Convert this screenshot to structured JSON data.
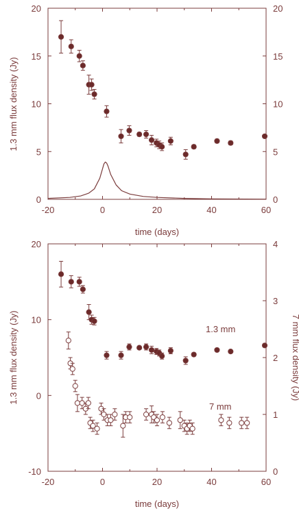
{
  "chart_data": [
    {
      "type": "scatter",
      "xlabel": "time (days)",
      "ylabel": "1.3 mm flux density (Jy)",
      "xlim": [
        -20,
        60
      ],
      "ylim": [
        0,
        20
      ],
      "y2lim": [
        0,
        20
      ],
      "xticks": [
        "-20",
        "0",
        "20",
        "40",
        "60"
      ],
      "yticks": [
        "0",
        "5",
        "10",
        "15",
        "20"
      ],
      "y2ticks": [
        "0",
        "5",
        "10",
        "15",
        "20"
      ],
      "series": [
        {
          "marker": "filled-circle",
          "points": [
            {
              "x": -15.2,
              "y": 17.0,
              "err": 1.7
            },
            {
              "x": -11.5,
              "y": 16.0,
              "err": 0.7
            },
            {
              "x": -8.5,
              "y": 15.0,
              "err": 0.6
            },
            {
              "x": -7.2,
              "y": 14.0,
              "err": 0.5
            },
            {
              "x": -5.0,
              "y": 12.0,
              "err": 1.0
            },
            {
              "x": -4.0,
              "y": 12.0,
              "err": 0.6
            },
            {
              "x": -3.0,
              "y": 11.0,
              "err": 0.5
            },
            {
              "x": 1.5,
              "y": 9.2,
              "err": 0.6
            },
            {
              "x": 6.8,
              "y": 6.6,
              "err": 0.7
            },
            {
              "x": 9.8,
              "y": 7.2,
              "err": 0.5
            },
            {
              "x": 13.5,
              "y": 6.8,
              "err": 0.2
            },
            {
              "x": 16.0,
              "y": 6.8,
              "err": 0.4
            },
            {
              "x": 18.0,
              "y": 6.2,
              "err": 0.5
            },
            {
              "x": 19.8,
              "y": 5.9,
              "err": 0.4
            },
            {
              "x": 20.8,
              "y": 5.7,
              "err": 0.4
            },
            {
              "x": 21.8,
              "y": 5.5,
              "err": 0.4
            },
            {
              "x": 25.0,
              "y": 6.1,
              "err": 0.4
            },
            {
              "x": 30.5,
              "y": 4.7,
              "err": 0.5
            },
            {
              "x": 33.5,
              "y": 5.5,
              "err": 0.2
            },
            {
              "x": 42.0,
              "y": 6.1,
              "err": 0.2
            },
            {
              "x": 47.0,
              "y": 5.9,
              "err": 0.2
            },
            {
              "x": 59.5,
              "y": 6.6,
              "err": 0.1
            }
          ]
        },
        {
          "marker": "line",
          "x": [
            -20,
            -12,
            -8,
            -5,
            -3,
            -1,
            0,
            0.5,
            1,
            1.5,
            2,
            3,
            5,
            7,
            10,
            15,
            20,
            30,
            40,
            60
          ],
          "y": [
            0.1,
            0.2,
            0.35,
            0.65,
            1.1,
            2.2,
            3.2,
            3.7,
            3.9,
            3.8,
            3.5,
            2.6,
            1.5,
            0.9,
            0.55,
            0.3,
            0.2,
            0.1,
            0.05,
            0.02
          ]
        }
      ]
    },
    {
      "type": "scatter",
      "xlabel": "time (days)",
      "ylabel": "1.3 mm flux density (Jy)",
      "y2label": "7 mm flux density (Jy)",
      "xlim": [
        -20,
        60
      ],
      "ylim": [
        -10,
        20
      ],
      "y2lim": [
        0,
        4
      ],
      "xticks": [
        "-20",
        "0",
        "20",
        "40",
        "60"
      ],
      "yticks": [
        "-10",
        "0",
        "10",
        "20"
      ],
      "y2ticks": [
        "0",
        "1",
        "2",
        "3",
        "4"
      ],
      "annotations": [
        "1.3  mm",
        "7 mm"
      ],
      "series": [
        {
          "marker": "filled-circle",
          "axis": "left",
          "points": [
            {
              "x": -15.2,
              "y": 16.0,
              "err": 1.7
            },
            {
              "x": -11.5,
              "y": 15.0,
              "err": 0.8
            },
            {
              "x": -8.5,
              "y": 15.0,
              "err": 0.6
            },
            {
              "x": -7.2,
              "y": 14.0,
              "err": 0.5
            },
            {
              "x": -5.0,
              "y": 11.0,
              "err": 1.0
            },
            {
              "x": -4.0,
              "y": 10.0,
              "err": 0.6
            },
            {
              "x": -3.0,
              "y": 9.8,
              "err": 0.5
            },
            {
              "x": 1.5,
              "y": 5.3,
              "err": 0.5
            },
            {
              "x": 6.8,
              "y": 5.3,
              "err": 0.5
            },
            {
              "x": 9.8,
              "y": 6.4,
              "err": 0.4
            },
            {
              "x": 13.5,
              "y": 6.3,
              "err": 0.2
            },
            {
              "x": 16.0,
              "y": 6.4,
              "err": 0.4
            },
            {
              "x": 18.0,
              "y": 6.0,
              "err": 0.5
            },
            {
              "x": 19.8,
              "y": 5.8,
              "err": 0.4
            },
            {
              "x": 20.8,
              "y": 5.6,
              "err": 0.4
            },
            {
              "x": 21.8,
              "y": 5.2,
              "err": 0.4
            },
            {
              "x": 25.0,
              "y": 5.9,
              "err": 0.4
            },
            {
              "x": 30.5,
              "y": 4.6,
              "err": 0.5
            },
            {
              "x": 33.5,
              "y": 5.4,
              "err": 0.2
            },
            {
              "x": 42.0,
              "y": 6.0,
              "err": 0.2
            },
            {
              "x": 47.0,
              "y": 5.8,
              "err": 0.2
            },
            {
              "x": 59.5,
              "y": 6.6,
              "err": 0.1
            }
          ]
        },
        {
          "marker": "open-circle",
          "axis": "right",
          "points": [
            {
              "x": -12.5,
              "y": 2.3,
              "err": 0.15
            },
            {
              "x": -11.8,
              "y": 1.9,
              "err": 0.1
            },
            {
              "x": -11.0,
              "y": 1.8,
              "err": 0.1
            },
            {
              "x": -10.0,
              "y": 1.5,
              "err": 0.1
            },
            {
              "x": -9.2,
              "y": 1.2,
              "err": 0.15
            },
            {
              "x": -7.5,
              "y": 1.2,
              "err": 0.1
            },
            {
              "x": -6.2,
              "y": 1.1,
              "err": 0.1
            },
            {
              "x": -5.2,
              "y": 1.2,
              "err": 0.1
            },
            {
              "x": -4.5,
              "y": 0.85,
              "err": 0.1
            },
            {
              "x": -3.5,
              "y": 0.8,
              "err": 0.1
            },
            {
              "x": -2.0,
              "y": 0.75,
              "err": 0.1
            },
            {
              "x": -0.5,
              "y": 1.1,
              "err": 0.1
            },
            {
              "x": 0.5,
              "y": 1.0,
              "err": 0.1
            },
            {
              "x": 1.8,
              "y": 0.9,
              "err": 0.1
            },
            {
              "x": 3.0,
              "y": 0.9,
              "err": 0.1
            },
            {
              "x": 4.5,
              "y": 1.0,
              "err": 0.1
            },
            {
              "x": 7.5,
              "y": 0.8,
              "err": 0.2
            },
            {
              "x": 8.5,
              "y": 0.95,
              "err": 0.1
            },
            {
              "x": 10.0,
              "y": 0.95,
              "err": 0.1
            },
            {
              "x": 16.0,
              "y": 1.0,
              "err": 0.1
            },
            {
              "x": 18.0,
              "y": 1.0,
              "err": 0.15
            },
            {
              "x": 18.8,
              "y": 0.95,
              "err": 0.1
            },
            {
              "x": 20.0,
              "y": 0.9,
              "err": 0.1
            },
            {
              "x": 22.0,
              "y": 0.95,
              "err": 0.1
            },
            {
              "x": 24.5,
              "y": 0.85,
              "err": 0.1
            },
            {
              "x": 28.5,
              "y": 0.9,
              "err": 0.15
            },
            {
              "x": 30.0,
              "y": 0.8,
              "err": 0.1
            },
            {
              "x": 31.0,
              "y": 0.75,
              "err": 0.1
            },
            {
              "x": 32.0,
              "y": 0.8,
              "err": 0.1
            },
            {
              "x": 33.0,
              "y": 0.75,
              "err": 0.1
            },
            {
              "x": 43.5,
              "y": 0.9,
              "err": 0.1
            },
            {
              "x": 46.5,
              "y": 0.85,
              "err": 0.1
            },
            {
              "x": 51.0,
              "y": 0.85,
              "err": 0.1
            },
            {
              "x": 53.0,
              "y": 0.85,
              "err": 0.1
            }
          ]
        }
      ]
    }
  ],
  "colors": {
    "ink": "#7a3b3b",
    "marker_fill": "#6b2a2a"
  }
}
